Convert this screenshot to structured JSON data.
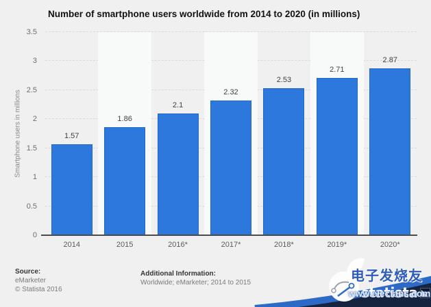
{
  "page": {
    "background": "#f0f0f0"
  },
  "chart_data": {
    "type": "bar",
    "title": "Number of smartphone users worldwide from 2014 to 2020 (in millions)",
    "categories": [
      "2014",
      "2015",
      "2016*",
      "2017*",
      "2018*",
      "2019*",
      "2020*"
    ],
    "values": [
      1.57,
      1.86,
      2.1,
      2.32,
      2.53,
      2.71,
      2.87
    ],
    "xlabel": "",
    "ylabel": "Smartphone users in millions",
    "ylim": [
      0,
      3.5
    ],
    "ytick_step": 0.5,
    "grid": "horizontal-dashed",
    "legend": "none",
    "bar_color": "#2d78dd",
    "bar_border_color": "#2266c8",
    "band_color": "#f8f9f9",
    "gridline_color": "#d9d9d9"
  },
  "footer": {
    "source_label": "Source:",
    "source_name": "eMarketer",
    "copyright": "© Statista 2016",
    "additional_label": "Additional Information:",
    "additional_text": "Worldwide; eMarketer; 2014 to 2015"
  },
  "branding": {
    "logo_text": "statista",
    "navy": "#16243f",
    "swoosh_blue": "#2c6ac6"
  },
  "watermark": {
    "text_cn": "电子发烧友",
    "text_url": "www.elecfans.com",
    "color": "#2e5cb8"
  }
}
